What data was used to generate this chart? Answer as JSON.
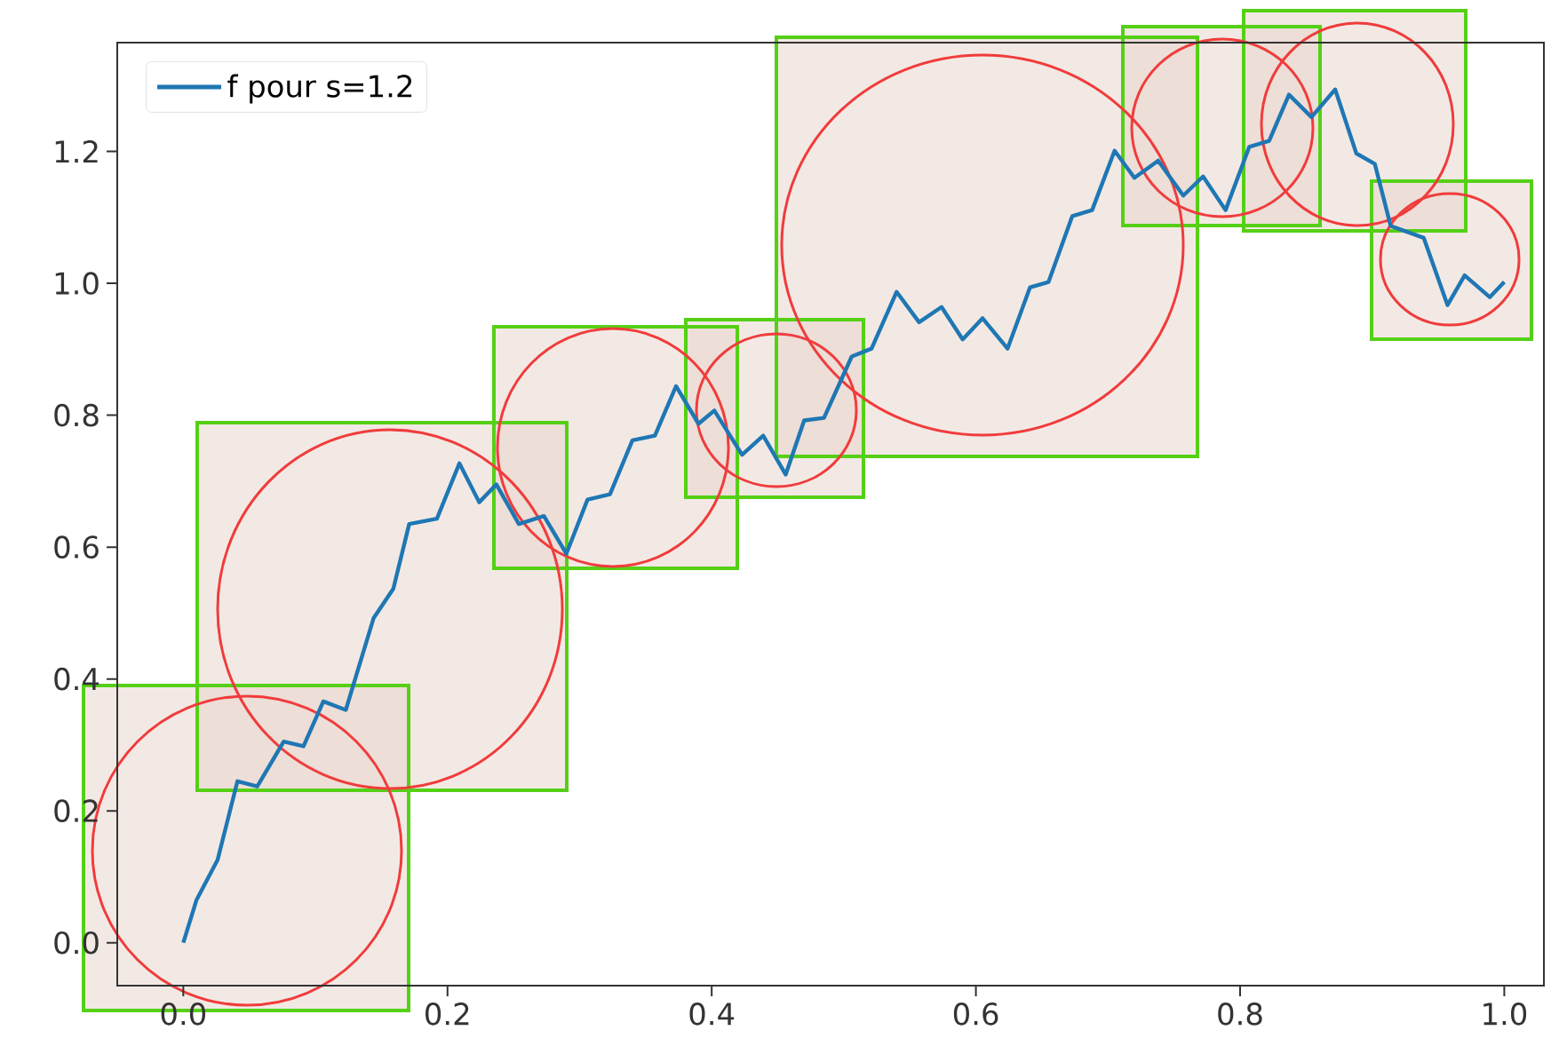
{
  "chart_data": {
    "type": "line",
    "x": [
      0.0,
      0.01,
      0.026,
      0.041,
      0.056,
      0.076,
      0.091,
      0.106,
      0.123,
      0.144,
      0.159,
      0.171,
      0.192,
      0.209,
      0.224,
      0.237,
      0.254,
      0.273,
      0.29,
      0.306,
      0.323,
      0.34,
      0.357,
      0.373,
      0.39,
      0.402,
      0.423,
      0.439,
      0.456,
      0.47,
      0.485,
      0.506,
      0.521,
      0.54,
      0.557,
      0.574,
      0.59,
      0.605,
      0.624,
      0.641,
      0.655,
      0.673,
      0.688,
      0.705,
      0.72,
      0.738,
      0.757,
      0.772,
      0.789,
      0.807,
      0.822,
      0.837,
      0.854,
      0.872,
      0.888,
      0.902,
      0.914,
      0.939,
      0.957,
      0.97,
      0.989,
      1.0
    ],
    "series": [
      {
        "name": "f pour s=1.2",
        "color": "#1f77b4",
        "values": [
          0.0,
          0.065,
          0.126,
          0.245,
          0.237,
          0.305,
          0.298,
          0.366,
          0.353,
          0.492,
          0.537,
          0.635,
          0.643,
          0.727,
          0.668,
          0.695,
          0.635,
          0.647,
          0.59,
          0.672,
          0.68,
          0.762,
          0.769,
          0.844,
          0.787,
          0.807,
          0.74,
          0.769,
          0.71,
          0.792,
          0.796,
          0.889,
          0.901,
          0.987,
          0.941,
          0.964,
          0.915,
          0.947,
          0.901,
          0.994,
          1.002,
          1.102,
          1.111,
          1.201,
          1.16,
          1.186,
          1.133,
          1.162,
          1.111,
          1.207,
          1.216,
          1.286,
          1.252,
          1.294,
          1.197,
          1.181,
          1.087,
          1.069,
          0.967,
          1.012,
          0.979,
          1.002
        ]
      }
    ],
    "xlim": [
      -0.05,
      1.03
    ],
    "ylim": [
      -0.065,
      1.365
    ],
    "xticks": [
      {
        "value": 0,
        "label": "0.0"
      },
      {
        "value": 0.2,
        "label": "0.2"
      },
      {
        "value": 0.4,
        "label": "0.4"
      },
      {
        "value": 0.6,
        "label": "0.6"
      },
      {
        "value": 0.8,
        "label": "0.8"
      },
      {
        "value": 1,
        "label": "1.0"
      }
    ],
    "yticks": [
      {
        "value": 0,
        "label": "0.0"
      },
      {
        "value": 0.2,
        "label": "0.2"
      },
      {
        "value": 0.4,
        "label": "0.4"
      },
      {
        "value": 0.6,
        "label": "0.6"
      },
      {
        "value": 0.8,
        "label": "0.8"
      },
      {
        "value": 1,
        "label": "1.0"
      },
      {
        "value": 1.2,
        "label": "1.2"
      }
    ],
    "legend": "top left",
    "marker": "none",
    "line_style": "solid"
  }
}
